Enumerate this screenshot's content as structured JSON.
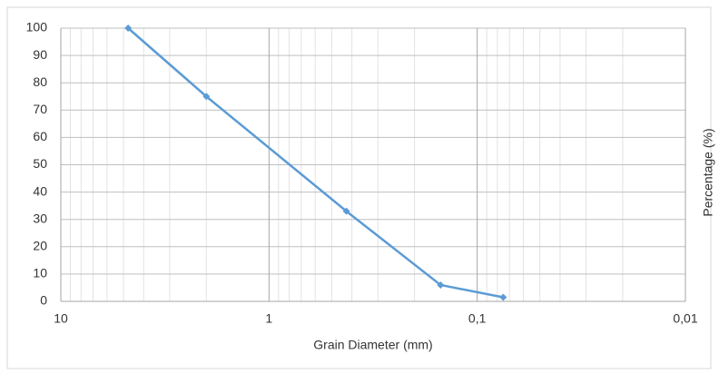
{
  "chart_data": {
    "type": "line",
    "x_label": "Grain Diameter (mm)",
    "y_label": "Percentage (%)",
    "x": [
      4.75,
      2.0,
      0.425,
      0.15,
      0.075
    ],
    "series": [
      {
        "color": "#5b9bd5",
        "values": [
          100,
          75,
          33,
          6,
          1.5
        ]
      }
    ],
    "xscale": "log",
    "xlim": [
      10,
      0.01
    ],
    "xticks": [
      10,
      1,
      {
        "value": 0.1,
        "label": "0,1"
      },
      {
        "value": 0.01,
        "label": "0,01"
      }
    ],
    "ylim": [
      0,
      100
    ],
    "yticks": [
      0,
      10,
      20,
      30,
      40,
      50,
      60,
      70,
      80,
      90,
      100
    ],
    "grid": true
  }
}
